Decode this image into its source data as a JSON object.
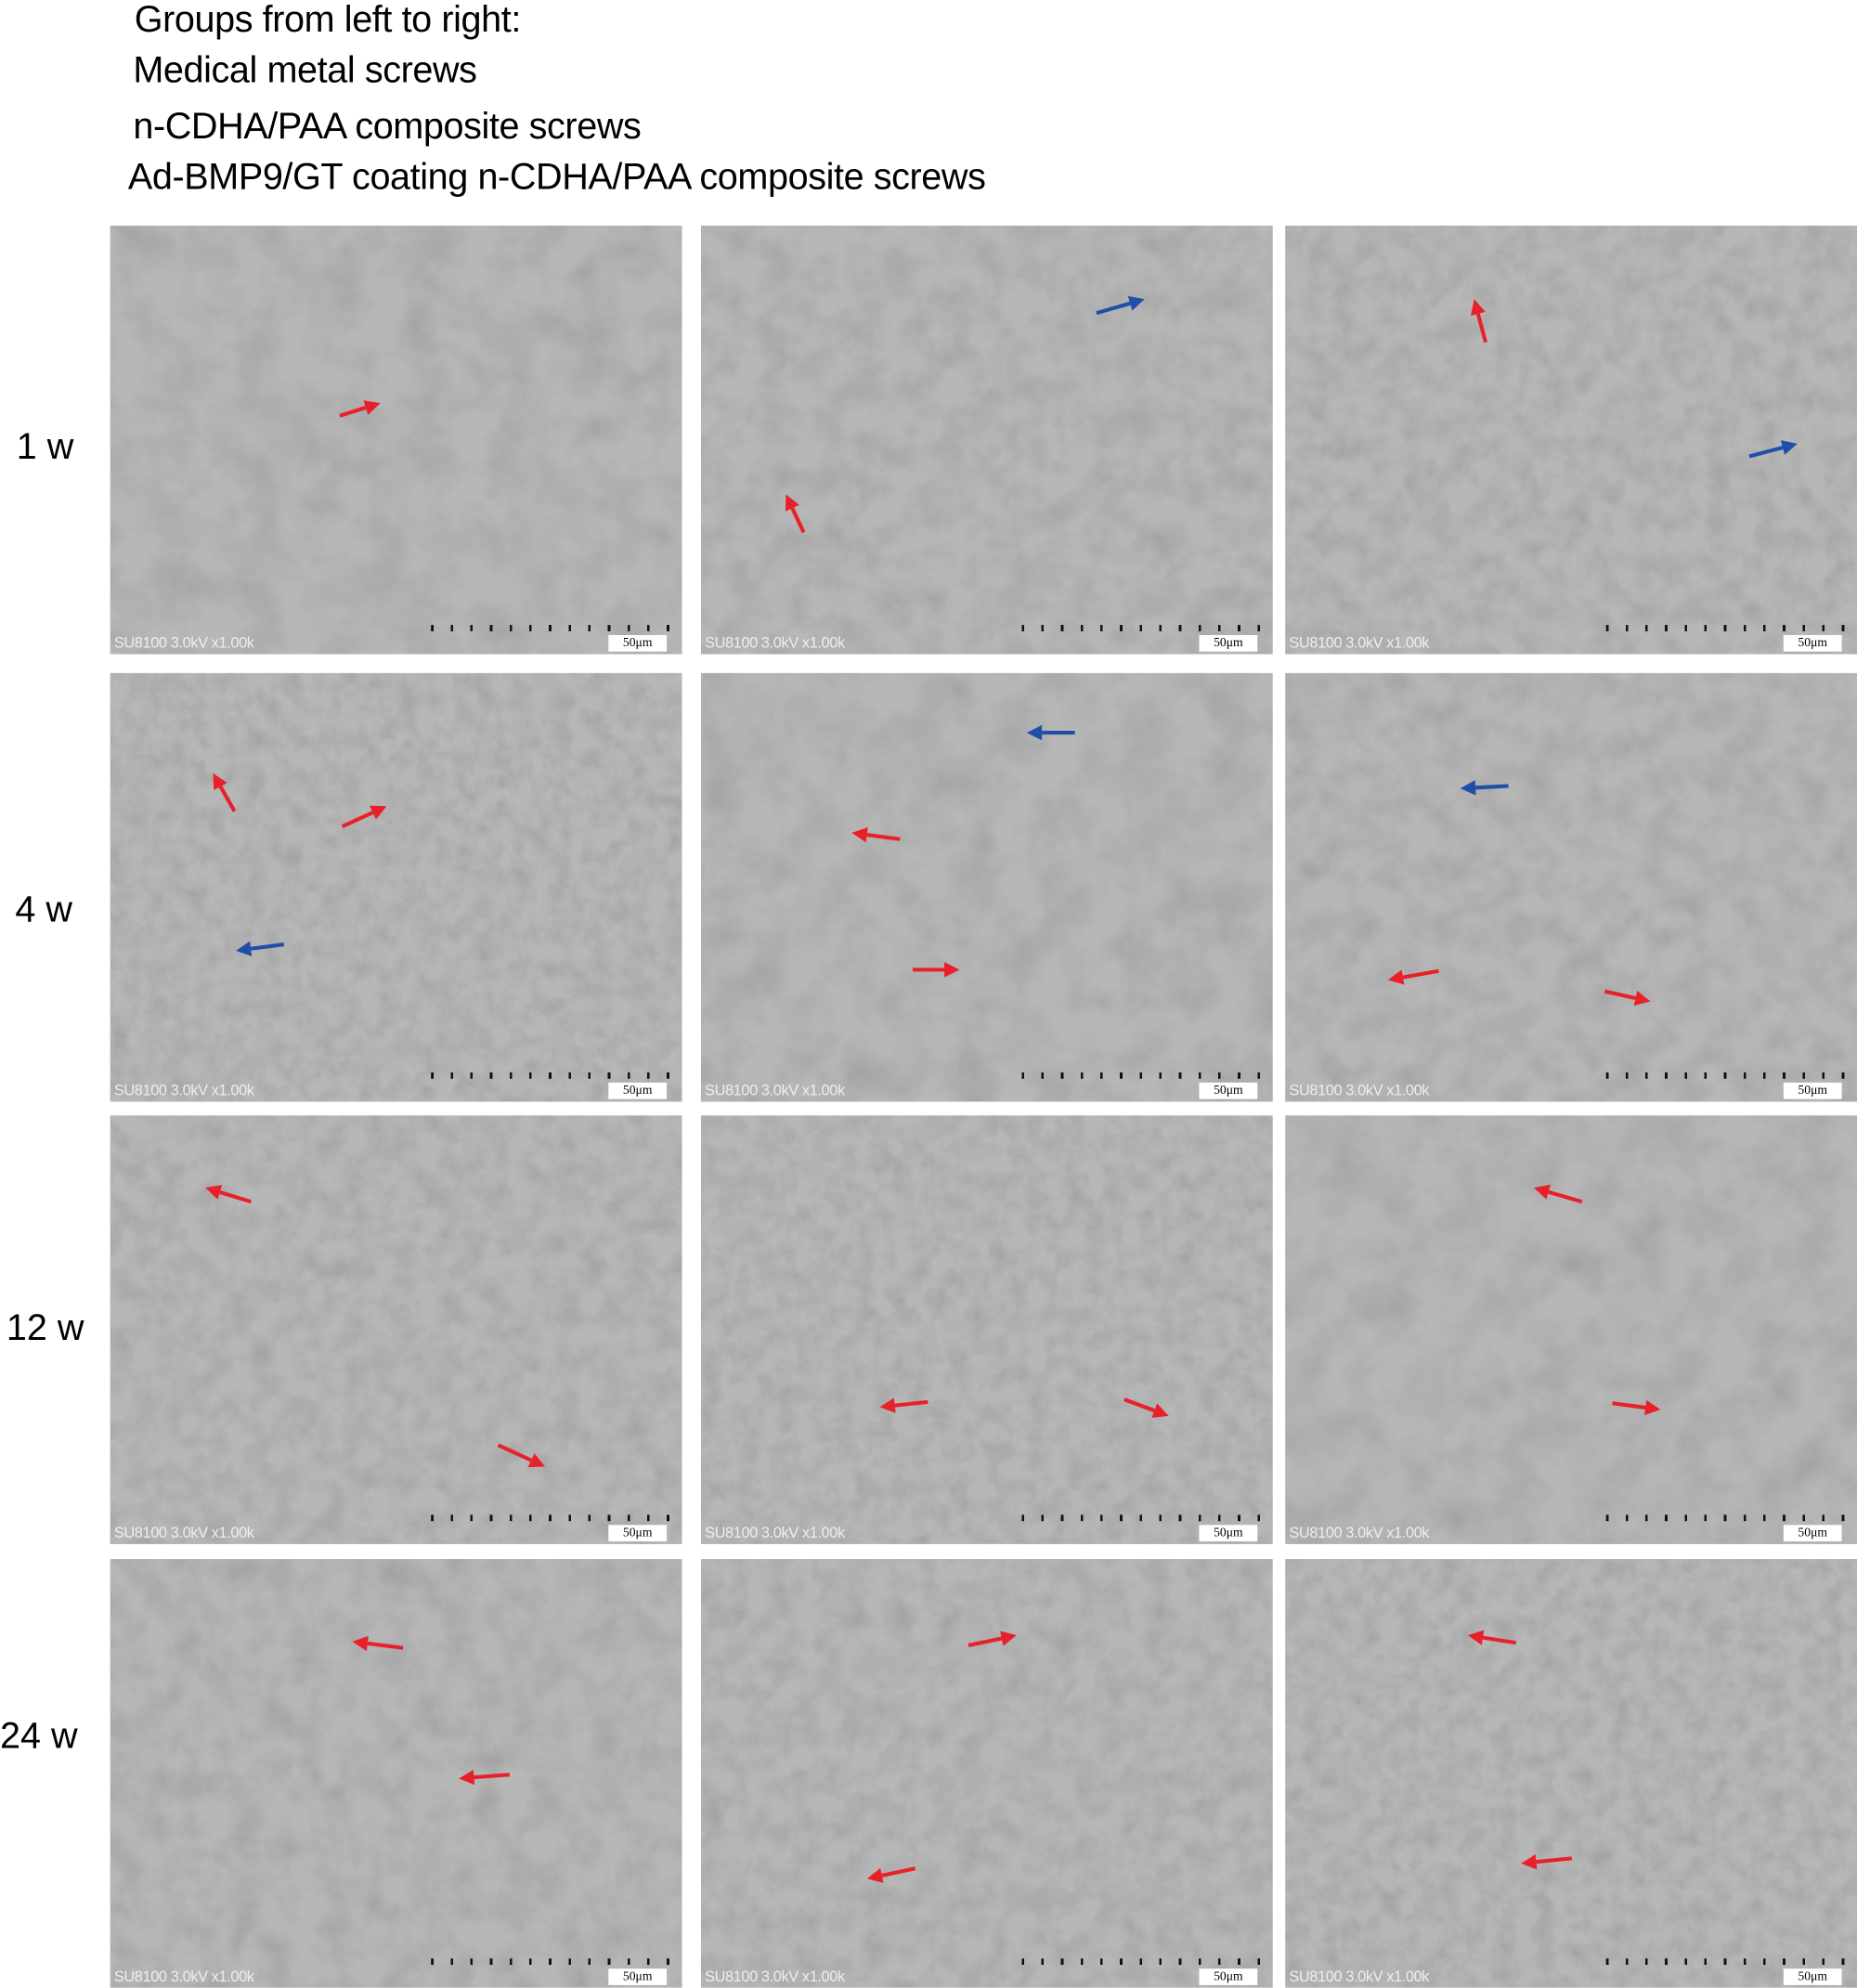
{
  "legend": {
    "heading": "Groups from left to right:",
    "groups": [
      "Medical metal screws",
      "n-CDHA/PAA composite screws",
      "Ad-BMP9/GT coating n-CDHA/PAA composite screws"
    ]
  },
  "rows": [
    "1 w",
    "4 w",
    "12 w",
    "24 w"
  ],
  "panel_meta": "SU8100 3.0kV x1.00k",
  "scale_bar": "50μm",
  "colors": {
    "red_arrow": "#e8202a",
    "blue_arrow": "#1f4fa8",
    "sem_gray": "#9a9a9a"
  },
  "arrows": [
    [
      [
        "red"
      ],
      [
        "blue",
        "red"
      ],
      [
        "red",
        "blue"
      ]
    ],
    [
      [
        "red",
        "red",
        "blue"
      ],
      [
        "blue",
        "red",
        "red"
      ],
      [
        "blue",
        "red",
        "red"
      ]
    ],
    [
      [
        "red",
        "red"
      ],
      [
        "red",
        "red"
      ],
      [
        "red",
        "red"
      ]
    ],
    [
      [
        "red",
        "red"
      ],
      [
        "red",
        "red"
      ],
      [
        "red",
        "red"
      ]
    ]
  ]
}
